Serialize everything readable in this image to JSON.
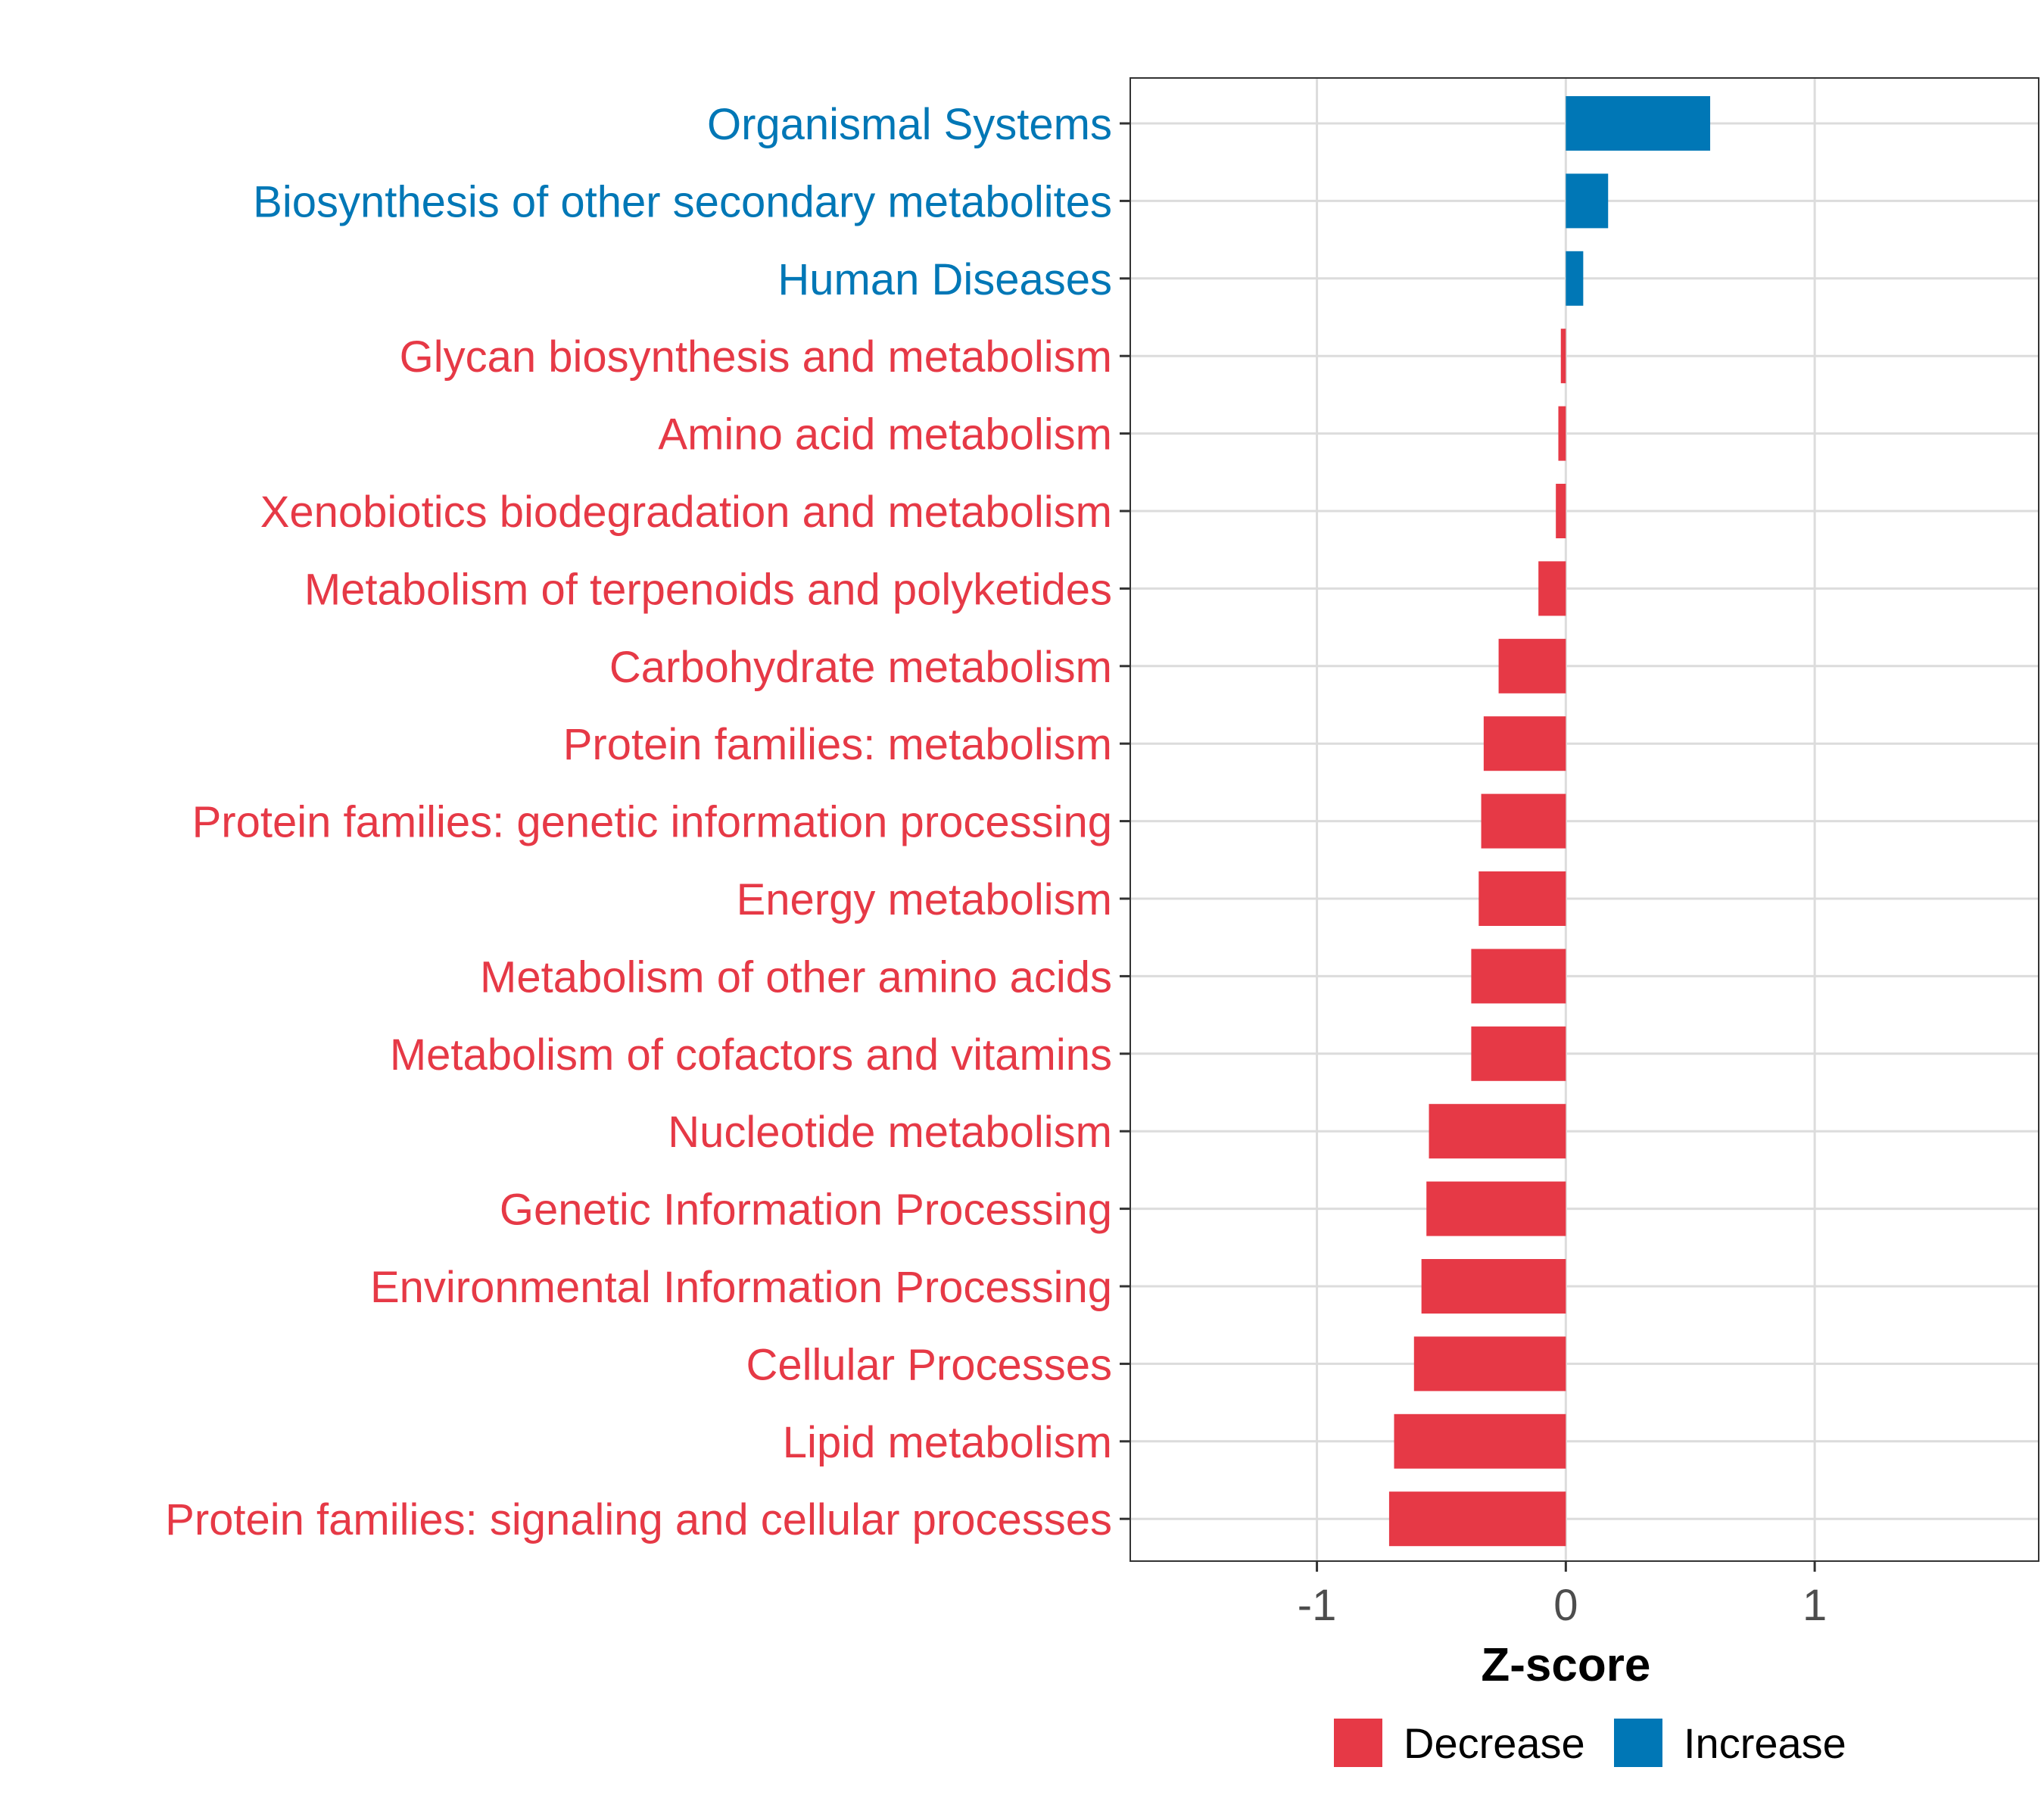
{
  "colors": {
    "decrease": "#E63946",
    "increase": "#0077B6",
    "grid": "#DCDCDC",
    "axis_text": "#4D4D4D",
    "panel_border": "#333333"
  },
  "legend": {
    "items": [
      {
        "label": "Decrease",
        "color": "#E63946"
      },
      {
        "label": "Increase",
        "color": "#0077B6"
      }
    ]
  },
  "chart_data": {
    "type": "bar",
    "orientation": "horizontal",
    "title": "",
    "xlabel": "Z-score",
    "ylabel": "",
    "xlim": [
      -1.75,
      1.9
    ],
    "xticks": [
      -1,
      0,
      1
    ],
    "xtick_labels": [
      "-1",
      "0",
      "1"
    ],
    "grid": true,
    "legend_position": "bottom",
    "categories": [
      "Organismal Systems",
      "Biosynthesis of other secondary metabolites",
      "Human Diseases",
      "Glycan biosynthesis and metabolism",
      "Amino acid metabolism",
      "Xenobiotics biodegradation and metabolism",
      "Metabolism of terpenoids and polyketides",
      "Carbohydrate metabolism",
      "Protein families: metabolism",
      "Protein families: genetic information processing",
      "Energy metabolism",
      "Metabolism of other amino acids",
      "Metabolism of cofactors and vitamins",
      "Nucleotide metabolism",
      "Genetic Information Processing",
      "Environmental Information Processing",
      "Cellular Processes",
      "Lipid metabolism",
      "Protein families: signaling and cellular processes"
    ],
    "values": [
      0.58,
      0.17,
      0.07,
      -0.02,
      -0.03,
      -0.04,
      -0.11,
      -0.27,
      -0.33,
      -0.34,
      -0.35,
      -0.38,
      -0.38,
      -0.55,
      -0.56,
      -0.58,
      -0.61,
      -0.69,
      -0.71
    ],
    "groups": [
      "Increase",
      "Increase",
      "Increase",
      "Decrease",
      "Decrease",
      "Decrease",
      "Decrease",
      "Decrease",
      "Decrease",
      "Decrease",
      "Decrease",
      "Decrease",
      "Decrease",
      "Decrease",
      "Decrease",
      "Decrease",
      "Decrease",
      "Decrease",
      "Decrease"
    ]
  }
}
